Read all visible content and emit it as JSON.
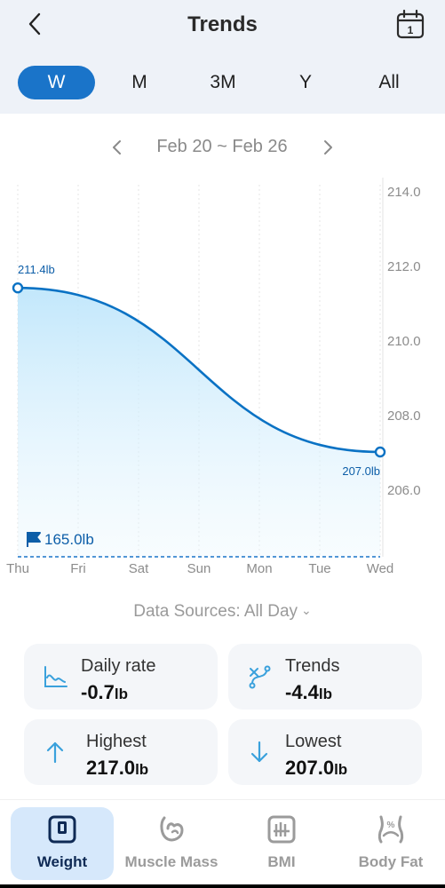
{
  "header": {
    "title": "Trends",
    "back_icon": "chevron-left-icon",
    "calendar_icon": "calendar-icon",
    "calendar_day": "1"
  },
  "periods": [
    {
      "label": "W",
      "active": true
    },
    {
      "label": "M",
      "active": false
    },
    {
      "label": "3M",
      "active": false
    },
    {
      "label": "Y",
      "active": false
    },
    {
      "label": "All",
      "active": false
    }
  ],
  "date_range": {
    "label": "Feb 20 ~ Feb 26"
  },
  "chart_data": {
    "type": "area",
    "categories": [
      "Thu",
      "Fri",
      "Sat",
      "Sun",
      "Mon",
      "Tue",
      "Wed"
    ],
    "points": [
      {
        "x": "Thu",
        "y": 211.4,
        "label": "211.4lb"
      },
      {
        "x": "Wed",
        "y": 207.0,
        "label": "207.0lb"
      }
    ],
    "y_ticks": [
      "214.0",
      "212.0",
      "210.0",
      "208.0",
      "206.0"
    ],
    "ylim": [
      205,
      214
    ],
    "goal": {
      "value": 165.0,
      "label": "165.0lb"
    },
    "line_color": "#0a72c4",
    "fill_color": "#bfe6fb"
  },
  "data_sources": {
    "label": "Data Sources: All Day",
    "caret": "⌄"
  },
  "stats": [
    {
      "label": "Daily rate",
      "value": "-0.7",
      "unit": "lb",
      "icon": "line-chart-icon"
    },
    {
      "label": "Trends",
      "value": "-4.4",
      "unit": "lb",
      "icon": "trend-path-icon"
    },
    {
      "label": "Highest",
      "value": "217.0",
      "unit": "lb",
      "icon": "arrow-up-icon"
    },
    {
      "label": "Lowest",
      "value": "207.0",
      "unit": "lb",
      "icon": "arrow-down-icon"
    }
  ],
  "nav": [
    {
      "label": "Weight",
      "icon": "scale-icon",
      "active": true
    },
    {
      "label": "Muscle Mass",
      "icon": "muscle-icon",
      "active": false
    },
    {
      "label": "BMI",
      "icon": "bmi-icon",
      "active": false
    },
    {
      "label": "Body Fat",
      "icon": "body-fat-icon",
      "active": false
    }
  ],
  "colors": {
    "accent": "#1a74c9",
    "icon_blue": "#3aa1dc"
  }
}
